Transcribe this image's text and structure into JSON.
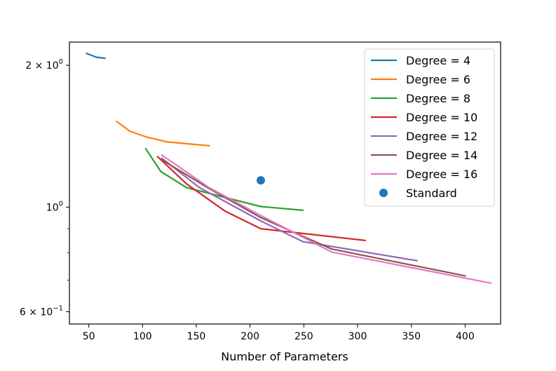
{
  "chart_data": {
    "type": "line",
    "title": "",
    "xlabel": "Number of Parameters",
    "ylabel": "",
    "xlim": [
      32,
      433
    ],
    "ylim": [
      0.565,
      2.24
    ],
    "yscale": "log",
    "xticks": [
      50,
      100,
      150,
      200,
      250,
      300,
      350,
      400
    ],
    "yticks_major": [
      {
        "value": 0.6,
        "label": "6 × 10",
        "exp": "−1"
      },
      {
        "value": 1.0,
        "label": "10",
        "exp": "0"
      },
      {
        "value": 2.0,
        "label": "2 × 10",
        "exp": "0"
      }
    ],
    "yticks_minor": [
      0.7,
      0.8,
      0.9,
      3.0
    ],
    "legend_position": "upper-right",
    "series": [
      {
        "name": "Degree = 4",
        "color": "#1f77b4",
        "x": [
          48,
          57,
          65
        ],
        "y": [
          2.12,
          2.08,
          2.07
        ]
      },
      {
        "name": "Degree = 6",
        "color": "#ff7f0e",
        "x": [
          76,
          88,
          103,
          123,
          162
        ],
        "y": [
          1.52,
          1.45,
          1.41,
          1.375,
          1.35
        ]
      },
      {
        "name": "Degree = 8",
        "color": "#2ca02c",
        "x": [
          103,
          117,
          141,
          210,
          249
        ],
        "y": [
          1.33,
          1.19,
          1.1,
          1.003,
          0.985
        ]
      },
      {
        "name": "Degree = 10",
        "color": "#d62728",
        "x": [
          114,
          141,
          177,
          210,
          307
        ],
        "y": [
          1.28,
          1.12,
          0.98,
          0.9,
          0.85
        ]
      },
      {
        "name": "Degree = 12",
        "color": "#9467bd",
        "x": [
          118,
          153,
          210,
          249,
          355
        ],
        "y": [
          1.27,
          1.1,
          0.935,
          0.845,
          0.77
        ]
      },
      {
        "name": "Degree = 14",
        "color": "#8c564b",
        "x": [
          118,
          162,
          210,
          276,
          400
        ],
        "y": [
          1.26,
          1.095,
          0.95,
          0.815,
          0.715
        ]
      },
      {
        "name": "Degree = 16",
        "color": "#e377c2",
        "x": [
          118,
          162,
          210,
          276,
          424
        ],
        "y": [
          1.29,
          1.1,
          0.96,
          0.803,
          0.69
        ]
      }
    ],
    "points": [
      {
        "name": "Standard",
        "color": "#1f77b4",
        "x": 210,
        "y": 1.14
      }
    ]
  }
}
